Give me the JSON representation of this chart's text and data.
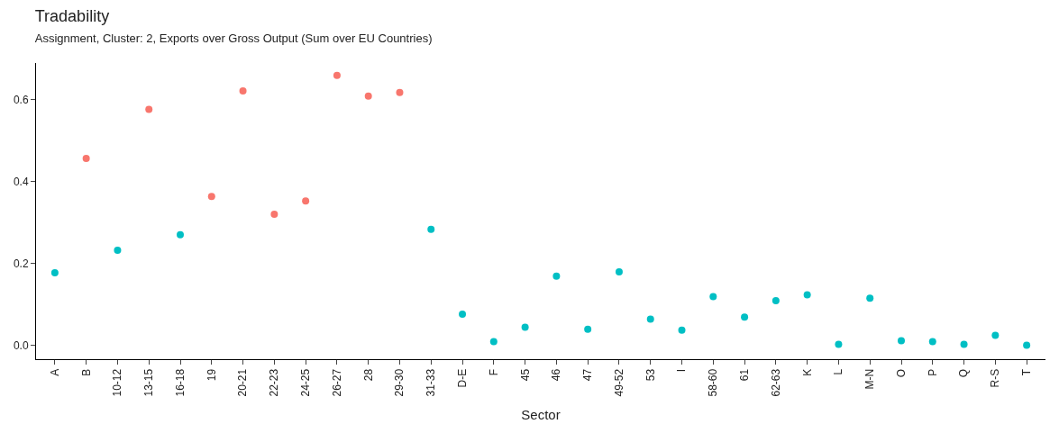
{
  "chart_data": {
    "type": "scatter",
    "title": "Tradability",
    "subtitle": "Assignment, Cluster: 2, Exports over Gross Output (Sum over EU Countries)",
    "xlabel": "Sector",
    "categories": [
      "A",
      "B",
      "10-12",
      "13-15",
      "16-18",
      "19",
      "20-21",
      "22-23",
      "24-25",
      "26-27",
      "28",
      "29-30",
      "31-33",
      "D-E",
      "F",
      "45",
      "46",
      "47",
      "49-52",
      "53",
      "I",
      "58-60",
      "61",
      "62-63",
      "K",
      "L",
      "M-N",
      "O",
      "P",
      "Q",
      "R-S",
      "T"
    ],
    "series": [
      {
        "color": "#f8766d",
        "values": [
          null,
          0.457,
          null,
          0.577,
          null,
          0.364,
          0.622,
          0.321,
          0.353,
          0.66,
          0.609,
          0.618,
          null,
          null,
          null,
          null,
          null,
          null,
          null,
          null,
          null,
          null,
          null,
          null,
          null,
          null,
          null,
          null,
          null,
          null,
          null,
          null
        ]
      },
      {
        "color": "#00bfc4",
        "values": [
          0.178,
          null,
          0.233,
          null,
          0.271,
          null,
          null,
          null,
          null,
          null,
          null,
          null,
          0.284,
          0.077,
          0.01,
          0.045,
          0.17,
          0.04,
          0.18,
          0.065,
          0.038,
          0.12,
          0.07,
          0.11,
          0.124,
          0.003,
          0.116,
          0.012,
          0.01,
          0.003,
          0.025,
          0.001
        ]
      }
    ],
    "ylim": [
      -0.033,
      0.69
    ],
    "yticks": [
      {
        "value": 0,
        "label": "0.0"
      },
      {
        "value": 0.2,
        "label": "0.2"
      },
      {
        "value": 0.4,
        "label": "0.4"
      },
      {
        "value": 0.6,
        "label": "0.6"
      }
    ],
    "marker": "circle"
  }
}
